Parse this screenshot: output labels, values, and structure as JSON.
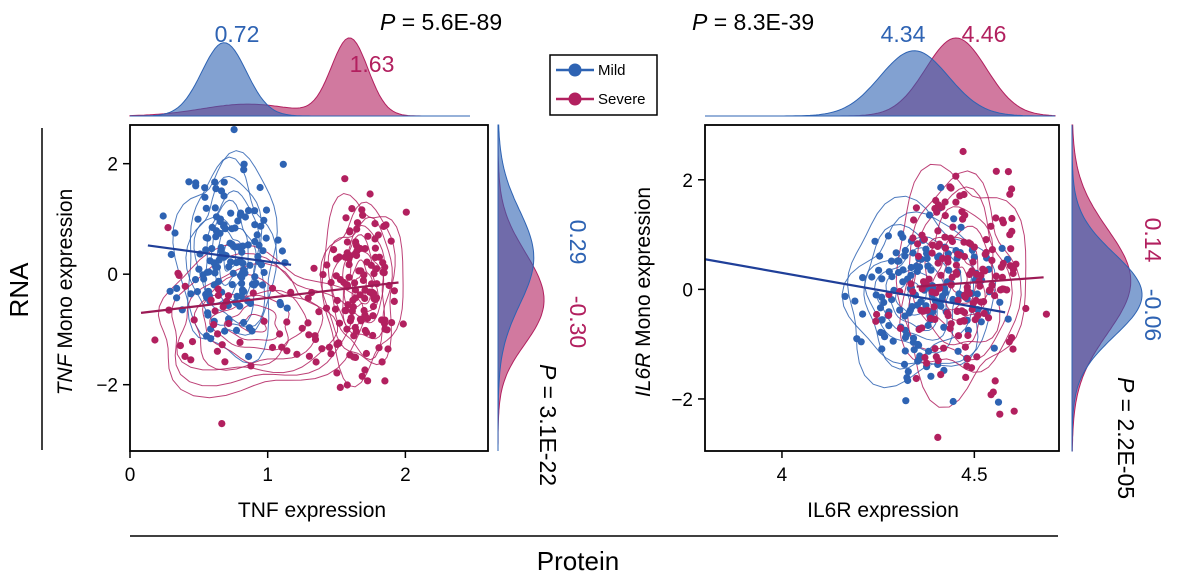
{
  "colors": {
    "mild": "#2e63b3",
    "severe": "#b2205f",
    "mild_fill": "#5b84bd",
    "severe_fill": "#ab4f7f",
    "overlap_fill": "#7a4a80"
  },
  "labels": {
    "rna": "RNA",
    "protein": "Protein"
  },
  "legend": {
    "mild": "Mild",
    "severe": "Severe"
  },
  "chart_data": [
    {
      "type": "scatter",
      "title": "TNF",
      "xlabel": "TNF expression",
      "ylabel_italic": "TNF",
      "ylabel_rest": " Mono expression",
      "xlim": [
        0,
        2.6
      ],
      "ylim": [
        -3.2,
        2.7
      ],
      "xticks": [
        0,
        1,
        2
      ],
      "yticks": [
        2,
        0,
        -2
      ],
      "xtick_labels": [
        "0",
        "1",
        "2"
      ],
      "ytick_labels": [
        "2",
        "0",
        "−2"
      ],
      "p_top_prefix": "P",
      "p_top_value": " = 5.6E-89",
      "p_right_prefix": "P",
      "p_right_value": " = 3.1E-22",
      "x_medians": {
        "mild": "0.72",
        "severe": "1.63"
      },
      "y_medians": {
        "mild": "0.29",
        "severe": "-0.30"
      },
      "mild": {
        "center": [
          0.72,
          0.3
        ],
        "sd": [
          0.17,
          0.85
        ],
        "n": 150,
        "fit": {
          "x": [
            0.13,
            1.17
          ],
          "y": [
            0.52,
            0.17
          ]
        },
        "density_peak_x": 0.72,
        "density_peak_y": 0.3
      },
      "severe": {
        "center": [
          1.68,
          -0.2
        ],
        "sd": [
          0.14,
          0.75
        ],
        "n": 130,
        "left_cluster": {
          "center": [
            0.9,
            -0.9
          ],
          "sd": [
            0.35,
            0.6
          ],
          "n": 50
        },
        "fit": {
          "x": [
            0.08,
            1.95
          ],
          "y": [
            -0.7,
            -0.15
          ]
        },
        "density_peak_x": 1.63,
        "density_peak_y": -0.3
      }
    },
    {
      "type": "scatter",
      "title": "IL6R",
      "xlabel": "IL6R expression",
      "ylabel_italic": "IL6R",
      "ylabel_rest": " Mono expression",
      "xlim": [
        3.8,
        4.72
      ],
      "ylim": [
        -2.95,
        3.0
      ],
      "xticks": [
        4,
        4.5
      ],
      "yticks": [
        2,
        0,
        -2
      ],
      "xtick_labels": [
        "4",
        "4.5"
      ],
      "ytick_labels": [
        "2",
        "0",
        "−2"
      ],
      "p_top_prefix": "P",
      "p_top_value": " = 8.3E-39",
      "p_right_prefix": "P",
      "p_right_value": " = 2.2E-05",
      "x_medians": {
        "mild": "4.34",
        "severe": "4.46"
      },
      "y_medians": {
        "mild": "-0.06",
        "severe": "0.14"
      },
      "mild": {
        "center": [
          4.35,
          -0.1
        ],
        "sd": [
          0.09,
          0.75
        ],
        "n": 160,
        "fit": {
          "x": [
            3.8,
            4.58
          ],
          "y": [
            0.55,
            -0.42
          ]
        },
        "density_peak_x": 4.34,
        "density_peak_y": -0.06
      },
      "severe": {
        "center": [
          4.46,
          0.15
        ],
        "sd": [
          0.08,
          0.95
        ],
        "n": 170,
        "fit": {
          "x": [
            4.35,
            4.68
          ],
          "y": [
            0.05,
            0.22
          ]
        },
        "density_peak_x": 4.46,
        "density_peak_y": 0.14
      }
    }
  ]
}
